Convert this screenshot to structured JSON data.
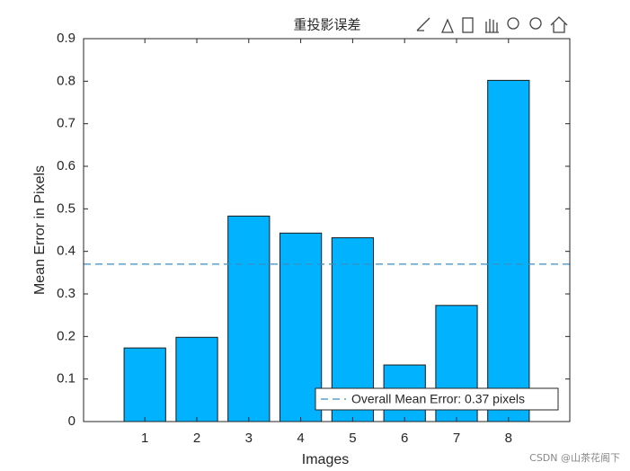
{
  "chart_data": {
    "type": "bar",
    "title": "重投影误差",
    "x": [
      1,
      2,
      3,
      4,
      5,
      6,
      7,
      8
    ],
    "values": [
      0.173,
      0.198,
      0.483,
      0.443,
      0.432,
      0.133,
      0.273,
      0.802
    ],
    "color": "#00b2ff",
    "xlabel": "Images",
    "ylabel": "Mean Error in Pixels",
    "xlim": [
      -0.18,
      9.18
    ],
    "xticks": [
      1,
      2,
      3,
      4,
      5,
      6,
      7,
      8
    ],
    "ylim": [
      0,
      0.9
    ],
    "yticks": [
      0,
      0.1,
      0.2,
      0.3,
      0.4,
      0.5,
      0.6,
      0.7,
      0.8,
      0.9
    ],
    "reference_line": {
      "value": 0.37,
      "name": "Overall Mean Error: 0.37 pixels",
      "color": "#3a8fc4",
      "style": "dashed"
    },
    "legend": "lower right",
    "grid": false
  },
  "watermark": "CSDN @山茶花阁下"
}
